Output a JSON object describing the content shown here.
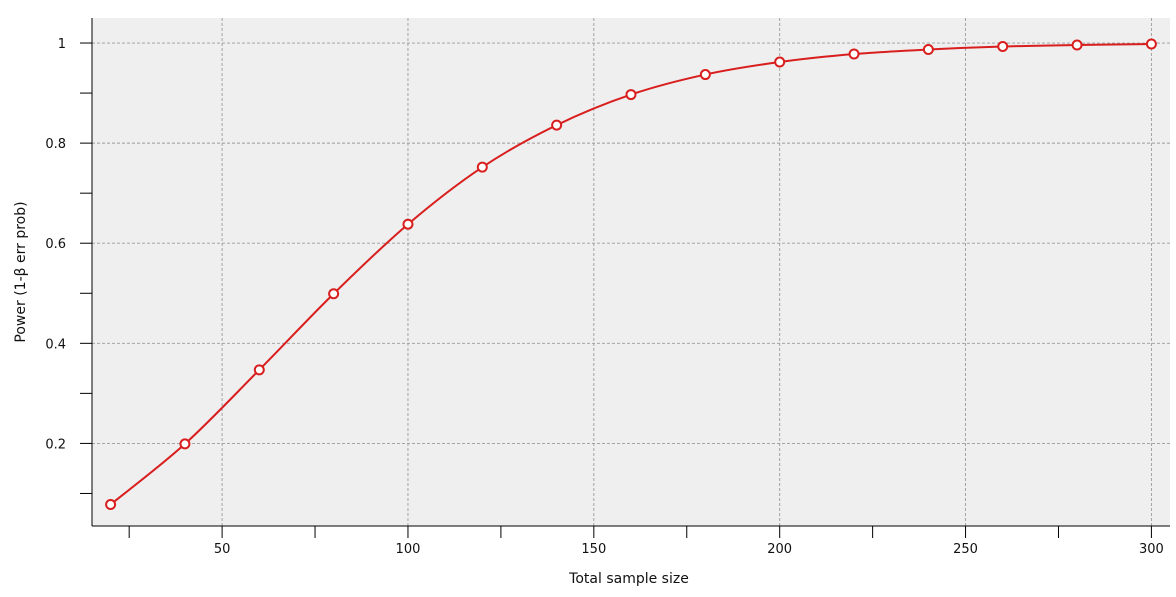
{
  "chart_data": {
    "type": "line",
    "xlabel": "Total sample size",
    "ylabel": "Power (1-β err prob)",
    "xlim": [
      15,
      305
    ],
    "ylim": [
      0.035,
      1.05
    ],
    "x_ticks": [
      50,
      100,
      150,
      200,
      250,
      300
    ],
    "x_tick_labels": [
      "50",
      "100",
      "150",
      "200",
      "250",
      "300"
    ],
    "x_minor_ticks": [
      25,
      75,
      125,
      175,
      225,
      275
    ],
    "y_ticks": [
      0.2,
      0.4,
      0.6,
      0.8,
      1
    ],
    "y_tick_labels": [
      "0.2",
      "0.4",
      "0.6",
      "0.8",
      "1"
    ],
    "y_minor_ticks": [
      0.1,
      0.3,
      0.5,
      0.7,
      0.9
    ],
    "grid": true,
    "legend": "none",
    "colors": {
      "plot_background": "#efefef",
      "grid": "#9a9a9a",
      "series": "#d91e1e",
      "marker_fill": "#ffffff"
    },
    "series": [
      {
        "x": [
          20,
          40,
          60,
          80,
          100,
          120,
          140,
          160,
          180,
          200,
          220,
          240,
          260,
          280,
          300
        ],
        "values": [
          0.078,
          0.199,
          0.347,
          0.499,
          0.638,
          0.752,
          0.836,
          0.897,
          0.937,
          0.962,
          0.978,
          0.987,
          0.993,
          0.996,
          0.998
        ]
      }
    ]
  }
}
